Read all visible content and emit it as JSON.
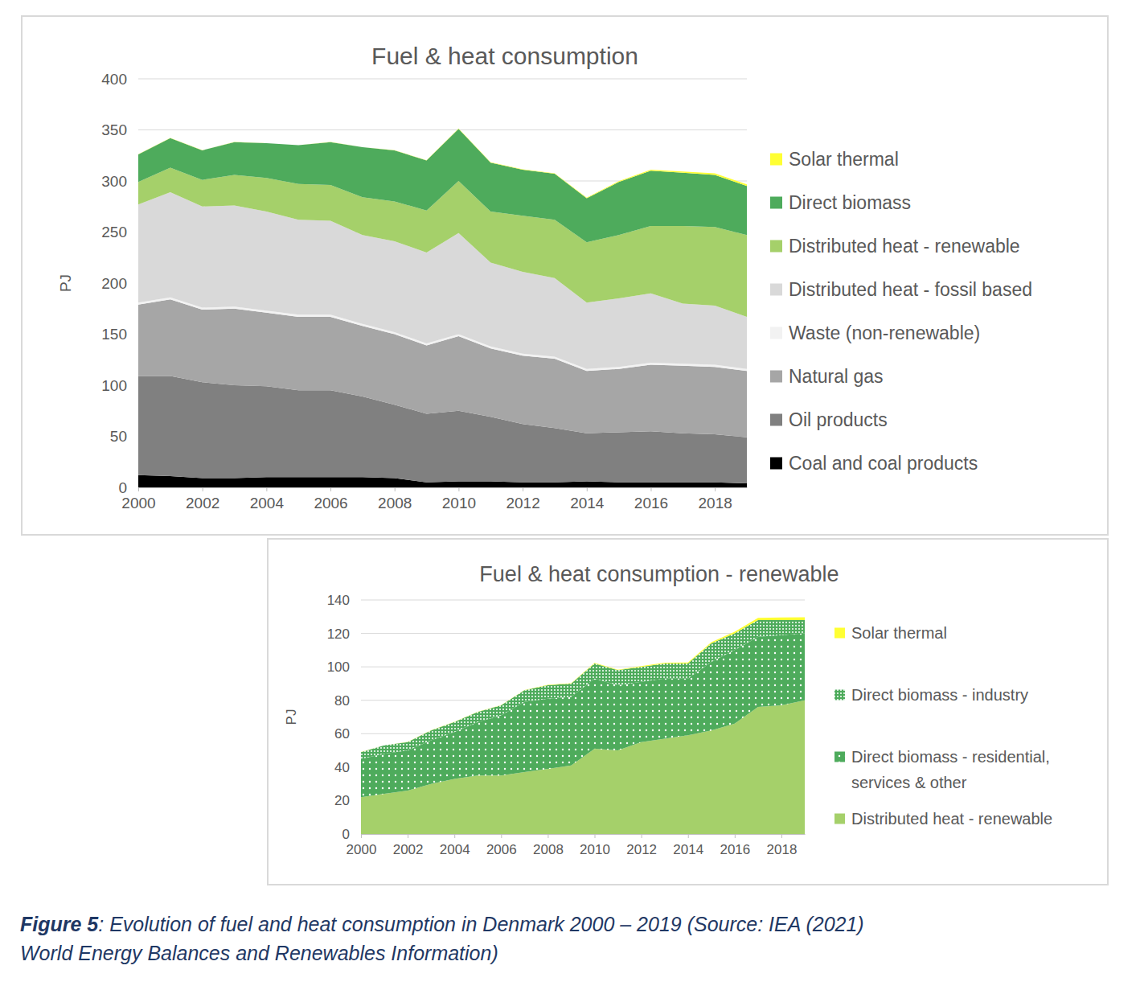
{
  "chart_data": [
    {
      "type": "area",
      "stacked": true,
      "grid": true,
      "legend": "right",
      "title": "Fuel & heat consumption",
      "y_label": "PJ",
      "x": [
        2000,
        2001,
        2002,
        2003,
        2004,
        2005,
        2006,
        2007,
        2008,
        2009,
        2010,
        2011,
        2012,
        2013,
        2014,
        2015,
        2016,
        2017,
        2018,
        2019
      ],
      "xlim": [
        2000,
        2019
      ],
      "xticks": [
        2000,
        2002,
        2004,
        2006,
        2008,
        2010,
        2012,
        2014,
        2016,
        2018
      ],
      "ylim": [
        0,
        400
      ],
      "yticks": [
        0,
        50,
        100,
        150,
        200,
        250,
        300,
        350,
        400
      ],
      "series": [
        {
          "name": "Coal and coal products",
          "color": "#000000",
          "values": [
            12,
            11,
            9,
            9,
            10,
            10,
            10,
            10,
            9,
            5,
            6,
            6,
            5,
            5,
            6,
            5,
            5,
            5,
            5,
            4
          ]
        },
        {
          "name": "Oil products",
          "color": "#808080",
          "values": [
            97,
            98,
            94,
            91,
            89,
            85,
            85,
            79,
            72,
            67,
            69,
            63,
            57,
            53,
            47,
            49,
            50,
            48,
            47,
            45
          ]
        },
        {
          "name": "Natural gas",
          "color": "#a6a6a6",
          "values": [
            70,
            75,
            71,
            75,
            72,
            72,
            72,
            69,
            69,
            67,
            73,
            67,
            67,
            68,
            61,
            62,
            65,
            66,
            66,
            65
          ]
        },
        {
          "name": "Waste (non-renewable)",
          "color": "#f2f2f2",
          "values": [
            2,
            2,
            2,
            2,
            2,
            2,
            2,
            2,
            2,
            2,
            2,
            2,
            2,
            2,
            2,
            2,
            2,
            2,
            2,
            2
          ]
        },
        {
          "name": "Distributed heat - fossil based",
          "color": "#d9d9d9",
          "values": [
            96,
            103,
            99,
            99,
            97,
            93,
            92,
            87,
            89,
            89,
            99,
            82,
            80,
            77,
            65,
            67,
            68,
            59,
            58,
            51
          ]
        },
        {
          "name": "Distributed heat - renewable",
          "color": "#a5d06a",
          "values": [
            22,
            24,
            26,
            30,
            33,
            35,
            35,
            37,
            39,
            41,
            51,
            50,
            55,
            57,
            59,
            62,
            66,
            76,
            77,
            80
          ]
        },
        {
          "name": "Direct biomass",
          "color": "#4eab5c",
          "values": [
            27,
            29,
            29,
            32,
            34,
            38,
            42,
            49,
            50,
            49,
            51,
            48,
            45,
            45,
            43,
            52,
            54,
            52,
            51,
            48
          ]
        },
        {
          "name": "Solar thermal",
          "color": "#ffff33",
          "values": [
            0.1,
            0.1,
            0.1,
            0.1,
            0.1,
            0.1,
            0.1,
            0.1,
            0.2,
            0.2,
            0.3,
            0.3,
            0.4,
            0.5,
            0.6,
            0.8,
            1,
            1.3,
            1.5,
            1.6
          ]
        }
      ]
    },
    {
      "type": "area",
      "stacked": true,
      "grid": true,
      "legend": "right",
      "title": "Fuel & heat consumption - renewable",
      "y_label": "PJ",
      "x": [
        2000,
        2001,
        2002,
        2003,
        2004,
        2005,
        2006,
        2007,
        2008,
        2009,
        2010,
        2011,
        2012,
        2013,
        2014,
        2015,
        2016,
        2017,
        2018,
        2019
      ],
      "xlim": [
        2000,
        2019
      ],
      "xticks": [
        2000,
        2002,
        2004,
        2006,
        2008,
        2010,
        2012,
        2014,
        2016,
        2018
      ],
      "ylim": [
        0,
        140
      ],
      "yticks": [
        0,
        20,
        40,
        60,
        80,
        100,
        120,
        140
      ],
      "series": [
        {
          "name": "Distributed heat - renewable",
          "color": "#a5d06a",
          "values": [
            22,
            24,
            26,
            30,
            33,
            35,
            35,
            37,
            39,
            41,
            51,
            50,
            55,
            57,
            59,
            62,
            66,
            76,
            77,
            80
          ]
        },
        {
          "name": "Direct biomass - residential, services & other",
          "color": "#4eab5c",
          "values": [
            23,
            24,
            24,
            26,
            28,
            32,
            36,
            42,
            42,
            41,
            42,
            39,
            36,
            36,
            34,
            41,
            44,
            42,
            42,
            40
          ]
        },
        {
          "name": "Direct biomass - industry",
          "color": "#4eab5c",
          "values": [
            4,
            5,
            5,
            6,
            6,
            6,
            6,
            7,
            8,
            8,
            9,
            9,
            9,
            9,
            9,
            11,
            10,
            10,
            9,
            8
          ]
        },
        {
          "name": "Solar thermal",
          "color": "#ffff33",
          "values": [
            0.1,
            0.1,
            0.1,
            0.1,
            0.1,
            0.1,
            0.1,
            0.1,
            0.2,
            0.2,
            0.3,
            0.3,
            0.4,
            0.5,
            0.6,
            0.8,
            1,
            1.3,
            1.5,
            1.6
          ]
        }
      ]
    }
  ],
  "caption": {
    "label": "Figure 5",
    "lines": [
      ": Evolution of fuel and heat consumption in Denmark 2000 – 2019 (Source: IEA (2021)",
      "World Energy Balances and Renewables Information)"
    ]
  }
}
